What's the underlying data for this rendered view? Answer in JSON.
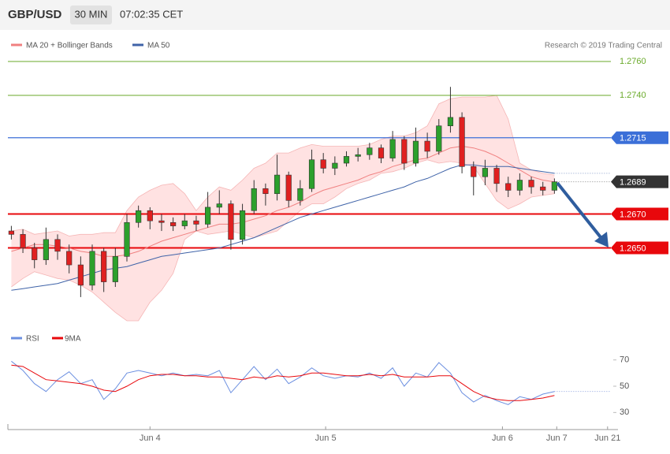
{
  "header": {
    "symbol": "GBP/USD",
    "interval": "30 MIN",
    "time": "07:02:35 CET"
  },
  "legend": {
    "ma20": "MA 20 + Bollinger Bands",
    "ma50": "MA 50",
    "credit": "Research © 2019 Trading Central"
  },
  "chart_data": {
    "type": "candlestick",
    "xlim": [
      -0.3,
      52.5
    ],
    "xticks": [
      {
        "value": 12,
        "label": "Jun 4"
      },
      {
        "value": 27.2,
        "label": "Jun 5"
      },
      {
        "value": 42.5,
        "label": "Jun 6"
      },
      {
        "value": 47.2,
        "label": "Jun 7"
      },
      {
        "value": 51.6,
        "label": "Jun 21"
      }
    ],
    "ylim": [
      1.26033,
      1.27637
    ],
    "levels": [
      {
        "value": 1.276,
        "label": "1.2760",
        "color": "#6aaa2a"
      },
      {
        "value": 1.274,
        "label": "1.2740",
        "color": "#6aaa2a"
      },
      {
        "value": 1.2715,
        "label": "1.2715",
        "color": "#3b6fd8"
      },
      {
        "value": 1.267,
        "label": "1.2670",
        "color": "#e8080c"
      },
      {
        "value": 1.265,
        "label": "1.2650",
        "color": "#e8080c"
      }
    ],
    "last": {
      "value": 1.2689,
      "label": "1.2689",
      "color": "#333333"
    },
    "open": [
      1.266,
      1.2658,
      1.265,
      1.2643,
      1.2655,
      1.2648,
      1.264,
      1.2628,
      1.2648,
      1.263,
      1.2645,
      1.2665,
      1.2672,
      1.2666,
      1.2665,
      1.2663,
      1.2666,
      1.2664,
      1.2674,
      1.2676,
      1.2655,
      1.2672,
      1.2685,
      1.2682,
      1.2693,
      1.2678,
      1.2685,
      1.2702,
      1.2697,
      1.27,
      1.2704,
      1.2705,
      1.2709,
      1.2703,
      1.2714,
      1.27,
      1.2713,
      1.2707,
      1.2722,
      1.2727,
      1.2698,
      1.2692,
      1.2697,
      1.2688,
      1.2684,
      1.269,
      1.2686,
      1.2684
    ],
    "high": [
      1.2663,
      1.2661,
      1.2653,
      1.2662,
      1.2658,
      1.2652,
      1.2645,
      1.2652,
      1.265,
      1.265,
      1.267,
      1.2675,
      1.2674,
      1.267,
      1.2668,
      1.267,
      1.2669,
      1.2683,
      1.2684,
      1.2678,
      1.2676,
      1.269,
      1.2688,
      1.2705,
      1.2695,
      1.269,
      1.2708,
      1.2706,
      1.2704,
      1.2707,
      1.2709,
      1.2712,
      1.2711,
      1.2719,
      1.2716,
      1.2721,
      1.2718,
      1.2726,
      1.2745,
      1.273,
      1.2701,
      1.2702,
      1.2699,
      1.2692,
      1.2694,
      1.2692,
      1.2689,
      1.2691
    ],
    "low": [
      1.2655,
      1.2647,
      1.2638,
      1.264,
      1.2643,
      1.2635,
      1.2621,
      1.2625,
      1.2624,
      1.2627,
      1.2642,
      1.2662,
      1.2661,
      1.266,
      1.266,
      1.2661,
      1.266,
      1.2662,
      1.267,
      1.2649,
      1.2652,
      1.267,
      1.2675,
      1.2678,
      1.2674,
      1.2675,
      1.2683,
      1.2694,
      1.2693,
      1.2698,
      1.2701,
      1.2702,
      1.27,
      1.2701,
      1.2696,
      1.2698,
      1.2703,
      1.2705,
      1.2718,
      1.2694,
      1.2681,
      1.2687,
      1.2683,
      1.268,
      1.2681,
      1.2682,
      1.2681,
      1.2682
    ],
    "close": [
      1.2658,
      1.265,
      1.2643,
      1.2655,
      1.2648,
      1.264,
      1.2628,
      1.2648,
      1.263,
      1.2645,
      1.2665,
      1.2672,
      1.2666,
      1.2665,
      1.2663,
      1.2666,
      1.2664,
      1.2674,
      1.2676,
      1.2655,
      1.2672,
      1.2685,
      1.2682,
      1.2693,
      1.2678,
      1.2685,
      1.2702,
      1.2697,
      1.27,
      1.2704,
      1.2705,
      1.2709,
      1.2703,
      1.2714,
      1.27,
      1.2713,
      1.2707,
      1.2722,
      1.2727,
      1.2698,
      1.2692,
      1.2697,
      1.2688,
      1.2684,
      1.269,
      1.2686,
      1.2684,
      1.2689
    ],
    "up_color": "#2ca02c",
    "down_color": "#e02020",
    "ma20": {
      "color": "#f08080",
      "values": [
        1.2648,
        1.265,
        1.2652,
        1.2652,
        1.2651,
        1.265,
        1.2648,
        1.2647,
        1.2645,
        1.2645,
        1.2646,
        1.2648,
        1.2651,
        1.2654,
        1.2656,
        1.2658,
        1.266,
        1.2662,
        1.2664,
        1.2664,
        1.2665,
        1.2667,
        1.2669,
        1.2672,
        1.2674,
        1.2677,
        1.2681,
        1.2684,
        1.2686,
        1.2688,
        1.269,
        1.2693,
        1.2695,
        1.2698,
        1.27,
        1.2702,
        1.2703,
        1.2706,
        1.2709,
        1.271,
        1.2709,
        1.2707,
        1.2704,
        1.27,
        1.2696,
        1.2692,
        1.269,
        1.2689
      ]
    },
    "upper": [
      1.266,
      1.2661,
      1.2658,
      1.2659,
      1.266,
      1.2657,
      1.2658,
      1.2658,
      1.2659,
      1.2659,
      1.2672,
      1.268,
      1.2684,
      1.2687,
      1.2688,
      1.2682,
      1.2672,
      1.268,
      1.2686,
      1.2684,
      1.269,
      1.2697,
      1.27,
      1.2706,
      1.2706,
      1.2709,
      1.2711,
      1.271,
      1.271,
      1.271,
      1.271,
      1.2711,
      1.2714,
      1.2716,
      1.2716,
      1.2718,
      1.2722,
      1.2735,
      1.2738,
      1.2739,
      1.2739,
      1.2739,
      1.274,
      1.2726,
      1.27,
      1.2696,
      1.2694,
      1.2693
    ],
    "lower": [
      1.2627,
      1.2632,
      1.2636,
      1.2634,
      1.2632,
      1.2631,
      1.2628,
      1.2624,
      1.2618,
      1.2612,
      1.2607,
      1.2607,
      1.2618,
      1.2625,
      1.2635,
      1.2655,
      1.266,
      1.2658,
      1.2659,
      1.266,
      1.2658,
      1.2656,
      1.2658,
      1.266,
      1.2666,
      1.2672,
      1.2676,
      1.2676,
      1.268,
      1.2685,
      1.2688,
      1.269,
      1.2694,
      1.2695,
      1.2697,
      1.27,
      1.2702,
      1.27,
      1.2701,
      1.27,
      1.2698,
      1.2688,
      1.2678,
      1.2673,
      1.2676,
      1.268,
      1.2681,
      1.2682
    ],
    "band_color": "#ffd6d6",
    "ma50": {
      "color": "#3f63a8",
      "values": [
        1.2625,
        1.2626,
        1.2627,
        1.2628,
        1.2629,
        1.2631,
        1.2633,
        1.2635,
        1.2637,
        1.2638,
        1.2639,
        1.2641,
        1.2643,
        1.2645,
        1.2646,
        1.2647,
        1.2648,
        1.2649,
        1.265,
        1.2652,
        1.2654,
        1.2656,
        1.2659,
        1.2662,
        1.2665,
        1.2668,
        1.267,
        1.2672,
        1.2674,
        1.2676,
        1.2678,
        1.268,
        1.2682,
        1.2684,
        1.2686,
        1.2689,
        1.2691,
        1.2694,
        1.2697,
        1.2699,
        1.2699,
        1.2698,
        1.2698,
        1.2698,
        1.2697,
        1.2696,
        1.2695,
        1.2694
      ]
    },
    "rsi": {
      "ylim": [
        23,
        80
      ],
      "yticks": [
        70,
        50,
        30
      ],
      "series": [
        {
          "name": "RSI",
          "color": "#6b8fe0",
          "values": [
            69,
            62,
            52,
            46,
            55,
            61,
            52,
            55,
            40,
            48,
            60,
            62,
            60,
            58,
            60,
            58,
            59,
            58,
            62,
            45,
            55,
            65,
            55,
            63,
            52,
            57,
            64,
            58,
            56,
            58,
            57,
            60,
            56,
            64,
            50,
            60,
            57,
            68,
            60,
            45,
            38,
            43,
            39,
            36,
            42,
            40,
            44,
            46
          ]
        },
        {
          "name": "9MA",
          "color": "#e8080c",
          "values": [
            66,
            65,
            60,
            55,
            54,
            53,
            52,
            50,
            47,
            46,
            50,
            55,
            58,
            59,
            59,
            58,
            58,
            57,
            57,
            56,
            55,
            57,
            56,
            58,
            57,
            58,
            60,
            60,
            59,
            58,
            58,
            59,
            58,
            59,
            57,
            57,
            57,
            58,
            58,
            52,
            46,
            42,
            40,
            39,
            39,
            40,
            41,
            43
          ]
        }
      ]
    }
  }
}
